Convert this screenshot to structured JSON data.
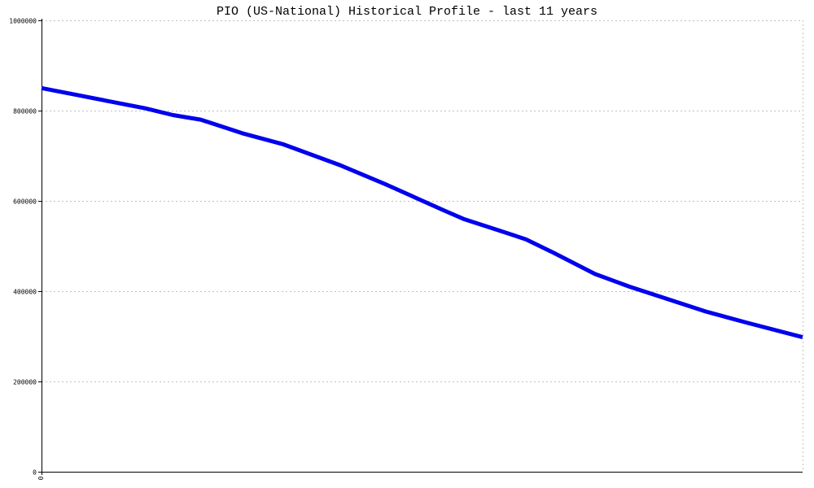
{
  "chart_data": {
    "type": "line",
    "title": "PIO (US-National) Historical Profile - last 11 years",
    "xlabel": "",
    "ylabel": "",
    "x_tick_labels": [
      "0"
    ],
    "y_tick_labels": [
      "0",
      "200000",
      "400000",
      "600000",
      "800000",
      "1000000"
    ],
    "y_ticks": [
      0,
      200000,
      400000,
      600000,
      800000,
      1000000
    ],
    "ylim": [
      0,
      1000000
    ],
    "xlim": [
      0,
      11
    ],
    "grid": true,
    "series": [
      {
        "color": "#0000ee",
        "x": [
          0,
          0.5,
          1,
          1.5,
          1.9,
          2.3,
          2.9,
          3.5,
          4.3,
          5,
          5.8,
          6.1,
          6.5,
          7,
          7.4,
          8,
          8.5,
          9.1,
          9.6,
          10.2,
          11
        ],
        "y": [
          850000,
          835000,
          820000,
          805000,
          790000,
          780000,
          750000,
          725000,
          680000,
          635000,
          580000,
          560000,
          540000,
          515000,
          485000,
          438000,
          410000,
          380000,
          355000,
          330000,
          298000
        ]
      }
    ]
  },
  "colors": {
    "grid": "#c0c0c0",
    "axis": "#000000",
    "line": "#0000ee"
  }
}
